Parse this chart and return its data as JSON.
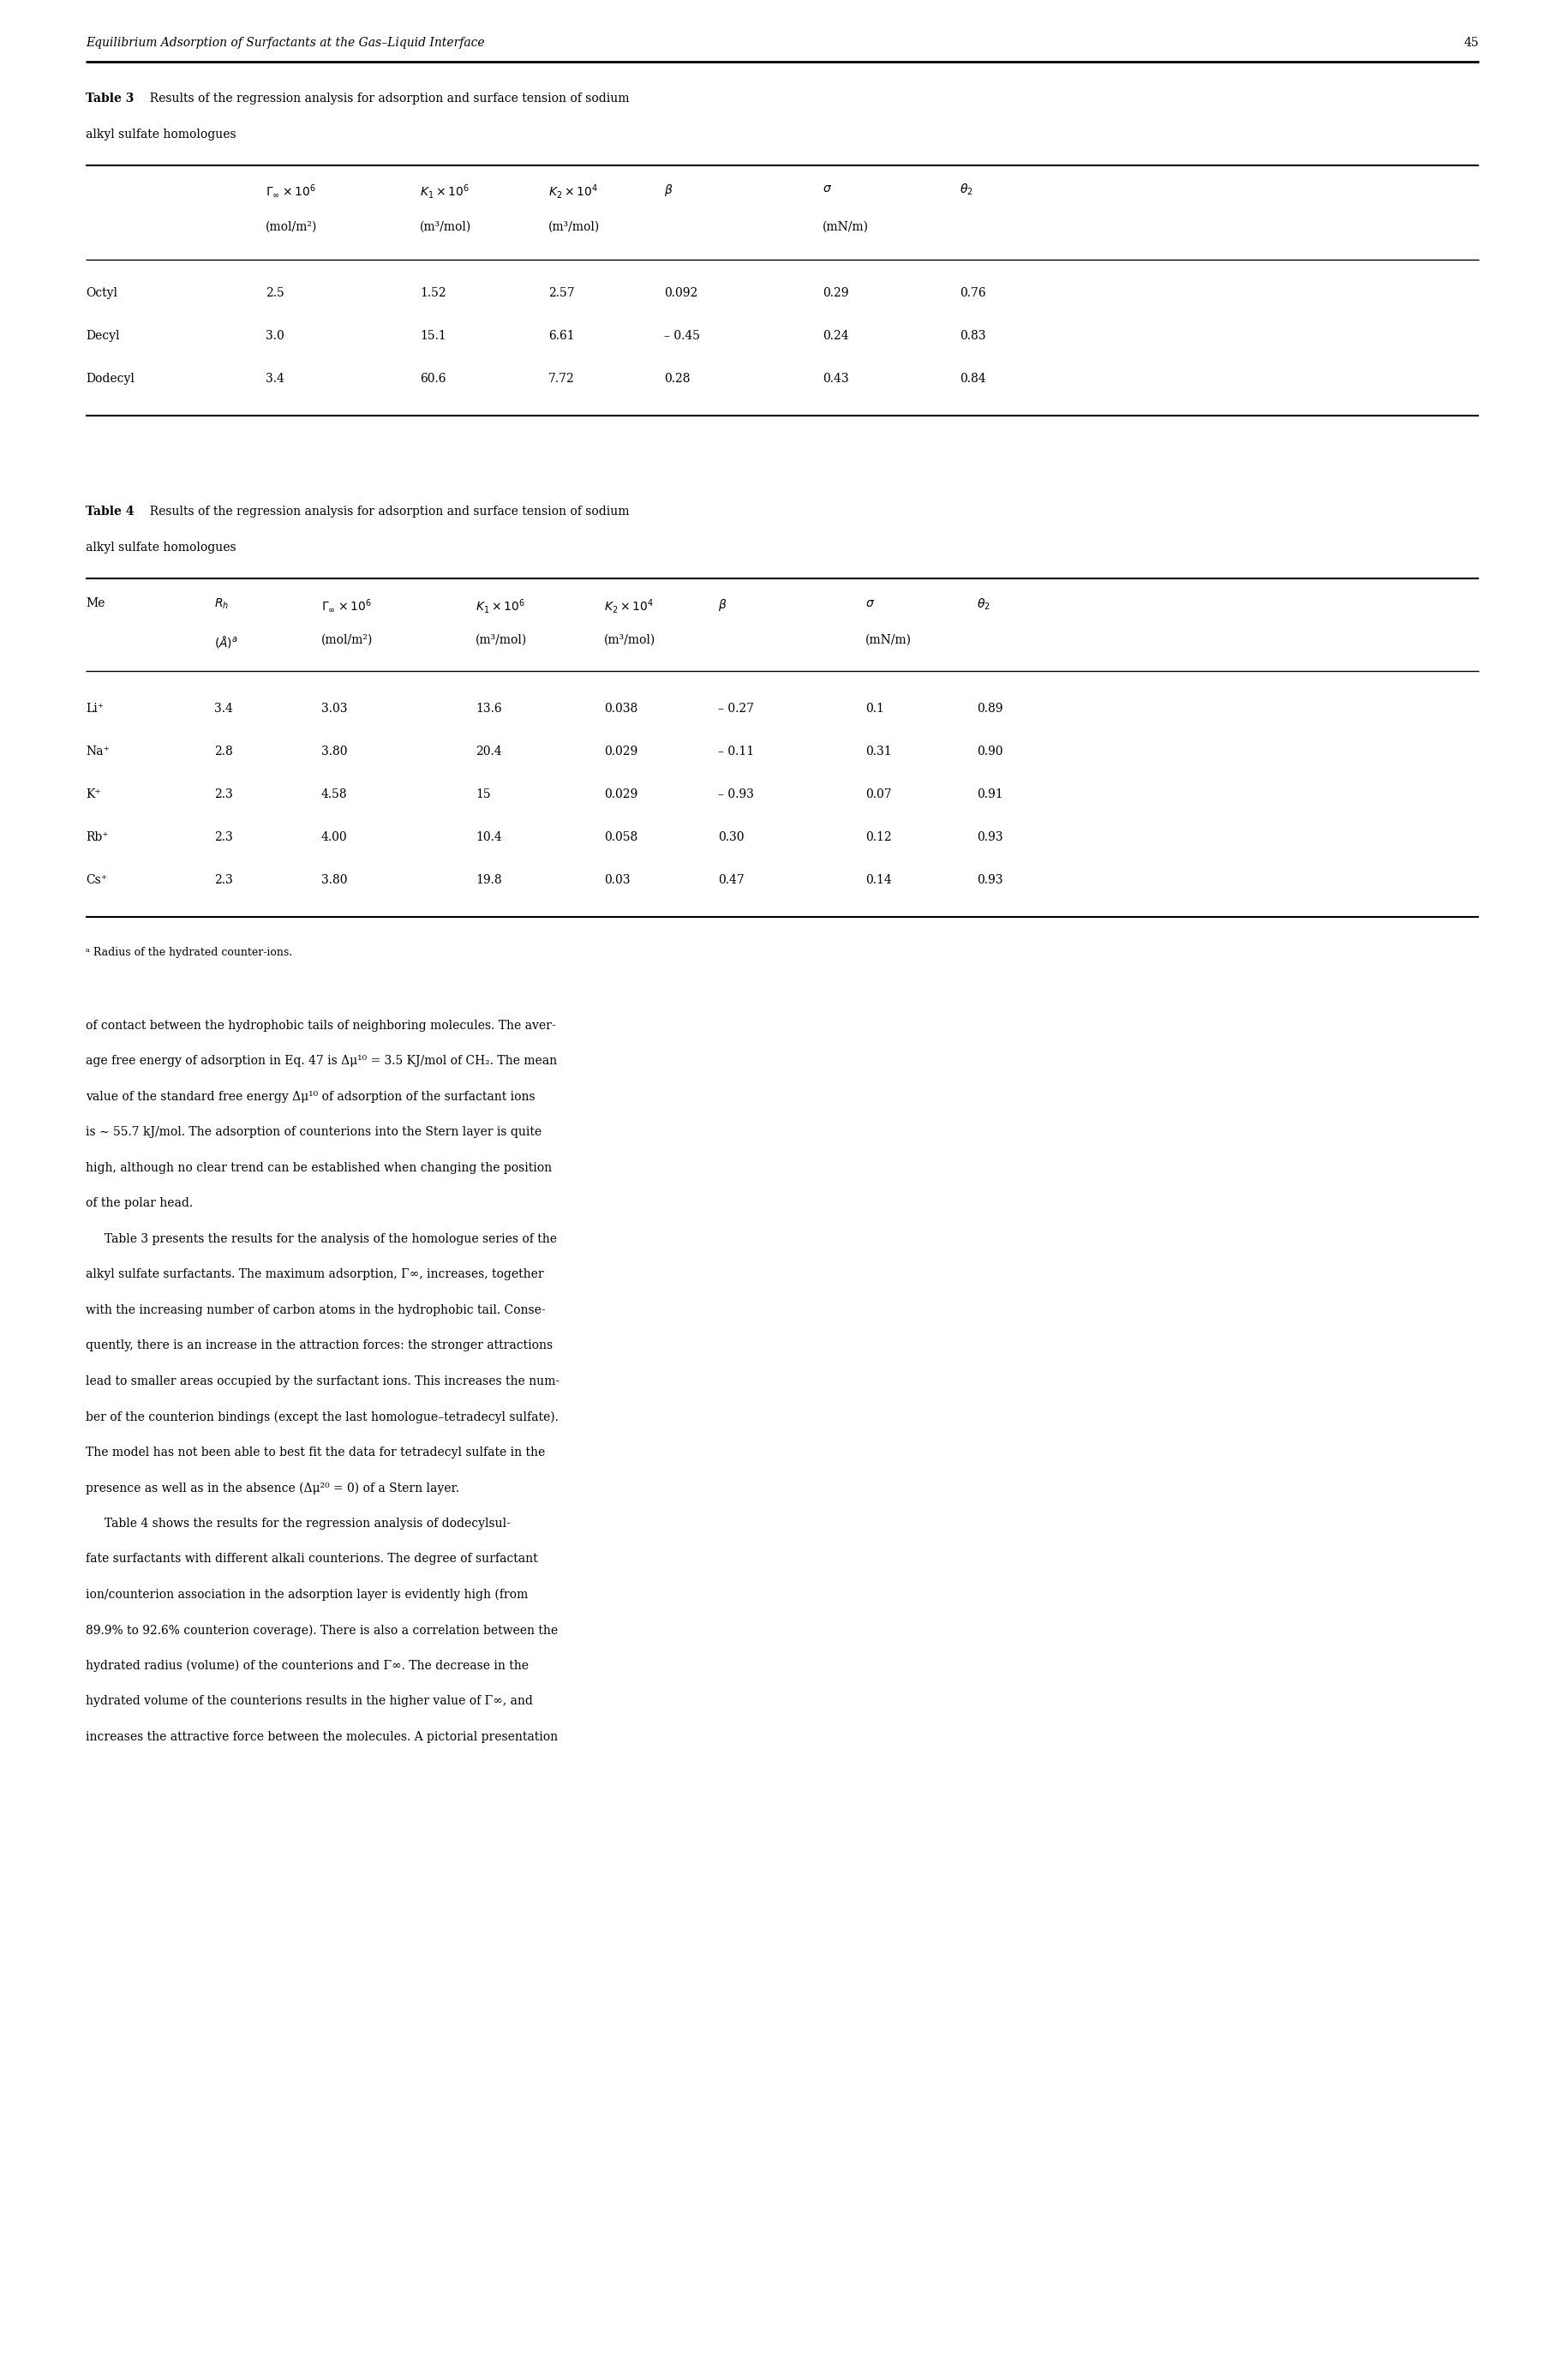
{
  "page_width": 18.31,
  "page_height": 27.75,
  "background": "#ffffff",
  "header_text": "Equilibrium Adsorption of Surfactants at the Gas–Liquid Interface",
  "header_page": "45",
  "table3_rows": [
    [
      "Octyl",
      "2.5",
      "1.52",
      "2.57",
      "0.092",
      "0.29",
      "0.76"
    ],
    [
      "Decyl",
      "3.0",
      "15.1",
      "6.61",
      "– 0.45",
      "0.24",
      "0.83"
    ],
    [
      "Dodecyl",
      "3.4",
      "60.6",
      "7.72",
      "0.28",
      "0.43",
      "0.84"
    ]
  ],
  "table4_rows": [
    [
      "Li⁺",
      "3.4",
      "3.03",
      "13.6",
      "0.038",
      "– 0.27",
      "0.1",
      "0.89"
    ],
    [
      "Na⁺",
      "2.8",
      "3.80",
      "20.4",
      "0.029",
      "– 0.11",
      "0.31",
      "0.90"
    ],
    [
      "K⁺",
      "2.3",
      "4.58",
      "15",
      "0.029",
      "– 0.93",
      "0.07",
      "0.91"
    ],
    [
      "Rb⁺",
      "2.3",
      "4.00",
      "10.4",
      "0.058",
      "0.30",
      "0.12",
      "0.93"
    ],
    [
      "Cs⁺",
      "2.3",
      "3.80",
      "19.8",
      "0.03",
      "0.47",
      "0.14",
      "0.93"
    ]
  ],
  "footnote": "ᵃ Radius of the hydrated counter-ions.",
  "body_lines": [
    "of contact between the hydrophobic tails of neighboring molecules. The aver-",
    "age free energy of adsorption in Eq. 47 is Δμ¹⁰ = 3.5 KJ/mol of CH₂. The mean",
    "value of the standard free energy Δμ¹⁰ of adsorption of the surfactant ions",
    "is ∼ 55.7 kJ/mol. The adsorption of counterions into the Stern layer is quite",
    "high, although no clear trend can be established when changing the position",
    "of the polar head.",
    "     Table 3 presents the results for the analysis of the homologue series of the",
    "alkyl sulfate surfactants. The maximum adsorption, Γ∞, increases, together",
    "with the increasing number of carbon atoms in the hydrophobic tail. Conse-",
    "quently, there is an increase in the attraction forces: the stronger attractions",
    "lead to smaller areas occupied by the surfactant ions. This increases the num-",
    "ber of the counterion bindings (except the last homologue–tetradecyl sulfate).",
    "The model has not been able to best fit the data for tetradecyl sulfate in the",
    "presence as well as in the absence (Δμ²⁰ = 0) of a Stern layer.",
    "     Table 4 shows the results for the regression analysis of dodecylsul-",
    "fate surfactants with different alkali counterions. The degree of surfactant",
    "ion/counterion association in the adsorption layer is evidently high (from",
    "89.9% to 92.6% counterion coverage). There is also a correlation between the",
    "hydrated radius (volume) of the counterions and Γ∞. The decrease in the",
    "hydrated volume of the counterions results in the higher value of Γ∞, and",
    "increases the attractive force between the molecules. A pictorial presentation"
  ],
  "lmargin": 1.0,
  "rmargin": 1.05,
  "fs": 10.0,
  "fs_footnote": 9.0
}
